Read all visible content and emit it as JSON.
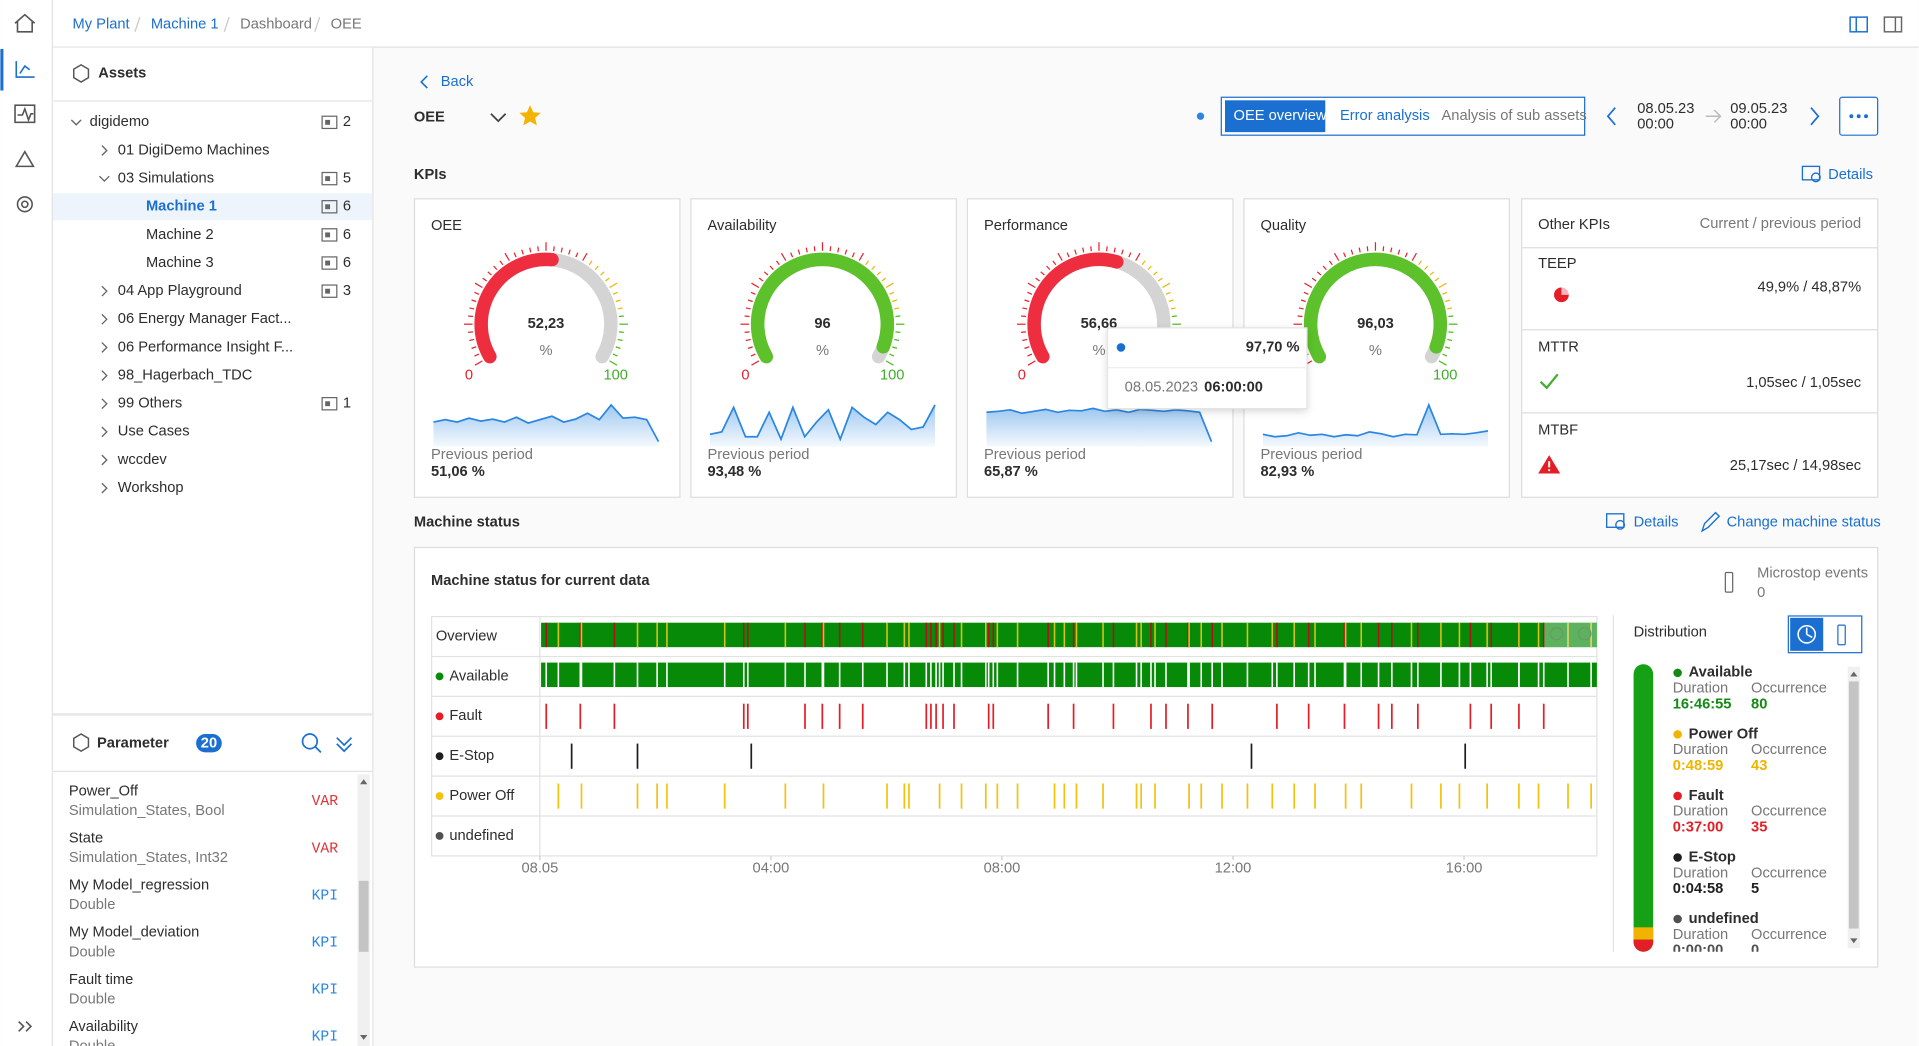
{
  "breadcrumb": [
    "My Plant",
    "Machine 1",
    "Dashboard",
    "OEE"
  ],
  "assets": {
    "title": "Assets",
    "tree": [
      {
        "label": "digidemo",
        "count": 2,
        "children": [
          {
            "label": "01 DigiDemo Machines"
          },
          {
            "label": "03 Simulations",
            "count": 5,
            "children": [
              {
                "label": "Machine 1",
                "count": 6,
                "selected": true
              },
              {
                "label": "Machine 2",
                "count": 6
              },
              {
                "label": "Machine 3",
                "count": 6
              }
            ]
          },
          {
            "label": "04 App Playground",
            "count": 3
          },
          {
            "label": "06 Energy Manager Fact..."
          },
          {
            "label": "06 Performance Insight F..."
          },
          {
            "label": "98_Hagerbach_TDC"
          },
          {
            "label": "99 Others",
            "count": 1
          },
          {
            "label": "Use Cases"
          },
          {
            "label": "wccdev"
          },
          {
            "label": "Workshop"
          }
        ]
      }
    ]
  },
  "parameter": {
    "title": "Parameter",
    "count": 20,
    "items": [
      {
        "name": "Power_Off",
        "type": "Simulation_States, Bool",
        "tag": "VAR",
        "tag_color": "#e0323a"
      },
      {
        "name": "State",
        "type": "Simulation_States, Int32",
        "tag": "VAR",
        "tag_color": "#e0323a"
      },
      {
        "name": "My Model_regression",
        "type": "Double",
        "tag": "KPI",
        "tag_color": "#2a86e0"
      },
      {
        "name": "My Model_deviation",
        "type": "Double",
        "tag": "KPI",
        "tag_color": "#2a86e0"
      },
      {
        "name": "Fault time",
        "type": "Double",
        "tag": "KPI",
        "tag_color": "#2a86e0"
      },
      {
        "name": "Availability",
        "type": "Double",
        "tag": "KPI",
        "tag_color": "#2a86e0"
      }
    ]
  },
  "header": {
    "back": "Back",
    "title": "OEE",
    "tabs": [
      "OEE overview",
      "Error analysis",
      "Analysis of sub assets"
    ],
    "from": {
      "date": "08.05.23",
      "time": "00:00"
    },
    "to": {
      "date": "09.05.23",
      "time": "00:00"
    }
  },
  "kpis": {
    "title": "KPIs",
    "details": "Details",
    "gauges": [
      {
        "name": "OEE",
        "value": 52.23,
        "value_label": "52,23",
        "unit": "%",
        "min": 0,
        "max": 100,
        "color": "#ee2d3f",
        "previous_label": "Previous period",
        "previous": "51,06 %",
        "trend": [
          50,
          55,
          50,
          58,
          52,
          56,
          50,
          60,
          48,
          55,
          62,
          50,
          56,
          68,
          55,
          85,
          58,
          60,
          55,
          10
        ]
      },
      {
        "name": "Availability",
        "value": 96,
        "unit": "%",
        "min": 0,
        "max": 100,
        "color": "#5cc12a",
        "previous_label": "Previous period",
        "previous": "93,48 %",
        "trend": [
          25,
          30,
          80,
          20,
          20,
          70,
          15,
          80,
          20,
          50,
          75,
          15,
          80,
          60,
          45,
          70,
          55,
          35,
          40,
          85
        ]
      },
      {
        "name": "Performance",
        "value": 56.66,
        "value_label": "56,66",
        "unit": "%",
        "min": 0,
        "max": 100,
        "color": "#ee2d3f",
        "previous_label": "Previous period",
        "previous": "65,87 %",
        "trend": [
          70,
          72,
          75,
          68,
          72,
          76,
          70,
          74,
          73,
          78,
          72,
          75,
          70,
          76,
          74,
          72,
          75,
          73,
          70,
          10
        ]
      },
      {
        "name": "Quality",
        "value": 96.03,
        "value_label": "96,03",
        "unit": "%",
        "min": 0,
        "max": 100,
        "color": "#5cc12a",
        "previous_label": "Previous period",
        "previous": "82,93 %",
        "trend": [
          25,
          20,
          22,
          28,
          23,
          25,
          20,
          24,
          22,
          30,
          26,
          20,
          25,
          24,
          85,
          25,
          26,
          25,
          28,
          32
        ]
      }
    ],
    "tooltip": {
      "value": "97,70 %",
      "date": "08.05.2023",
      "time": "06:00:00"
    }
  },
  "other_kpis": {
    "title": "Other KPIs",
    "subtitle": "Current / previous period",
    "items": [
      {
        "name": "TEEP",
        "value": "49,9% / 48,87%"
      },
      {
        "name": "MTTR",
        "value": "1,05sec / 1,05sec"
      },
      {
        "name": "MTBF",
        "value": "25,17sec / 14,98sec"
      }
    ]
  },
  "machine_status": {
    "title": "Machine status",
    "details": "Details",
    "change": "Change machine status",
    "panel_title": "Machine status for current data",
    "microstop": {
      "label": "Microstop events",
      "value": 0
    },
    "chart_data": {
      "type": "timeline",
      "xlim": [
        0,
        18.3
      ],
      "xticks": [
        {
          "value": 0,
          "label": "08.05"
        },
        {
          "value": 4,
          "label": "04:00"
        },
        {
          "value": 8,
          "label": "08:00"
        },
        {
          "value": 12,
          "label": "12:00"
        },
        {
          "value": 16,
          "label": "16:00"
        }
      ],
      "rows": [
        {
          "name": "Overview"
        },
        {
          "name": "Available",
          "color": "#078a07"
        },
        {
          "name": "Fault",
          "color": "#e41e26",
          "events": [
            0.11,
            0.7,
            1.29,
            3.53,
            3.6,
            4.59,
            4.89,
            5.19,
            5.59,
            6.69,
            6.77,
            6.86,
            6.98,
            7.17,
            7.77,
            7.85,
            8.8,
            9.24,
            9.93,
            10.58,
            10.84,
            11.22,
            11.64,
            12.76,
            13.31,
            13.93,
            14.52,
            14.75,
            15.2,
            16.11,
            16.47,
            16.95,
            17.38
          ]
        },
        {
          "name": "E-Stop",
          "color": "#1e1e1e",
          "events": [
            0.55,
            1.69,
            3.66,
            12.32,
            16.02
          ]
        },
        {
          "name": "Power Off",
          "color": "#f4c20d",
          "events": [
            0.32,
            0.72,
            1.69,
            2.03,
            2.2,
            3.2,
            4.25,
            4.91,
            6.01,
            6.31,
            6.39,
            6.92,
            7.3,
            7.72,
            7.92,
            8.27,
            8.91,
            9.08,
            9.29,
            9.75,
            10.33,
            10.41,
            10.65,
            11.24,
            11.45,
            11.81,
            12.25,
            12.68,
            13.06,
            13.42,
            13.95,
            14.22,
            15.09,
            15.6,
            15.92,
            16.4,
            16.95,
            17.29,
            17.8,
            18.2
          ]
        },
        {
          "name": "undefined",
          "color": "#505050"
        }
      ]
    },
    "distribution": {
      "title": "Distribution",
      "duration_label": "Duration",
      "occurrence_label": "Occurrence",
      "items": [
        {
          "name": "Available",
          "duration": "16:46:55",
          "occurrence": 80,
          "color": "#138a13"
        },
        {
          "name": "Power Off",
          "duration": "0:48:59",
          "occurrence": 43,
          "color": "#f0b400"
        },
        {
          "name": "Fault",
          "duration": "0:37:00",
          "occurrence": 35,
          "color": "#e41e26"
        },
        {
          "name": "E-Stop",
          "duration": "0:04:58",
          "occurrence": 5,
          "color": "#1e1e1e"
        },
        {
          "name": "undefined",
          "duration": "0:00:00",
          "occurrence": 0,
          "color": "#505050"
        }
      ]
    }
  }
}
